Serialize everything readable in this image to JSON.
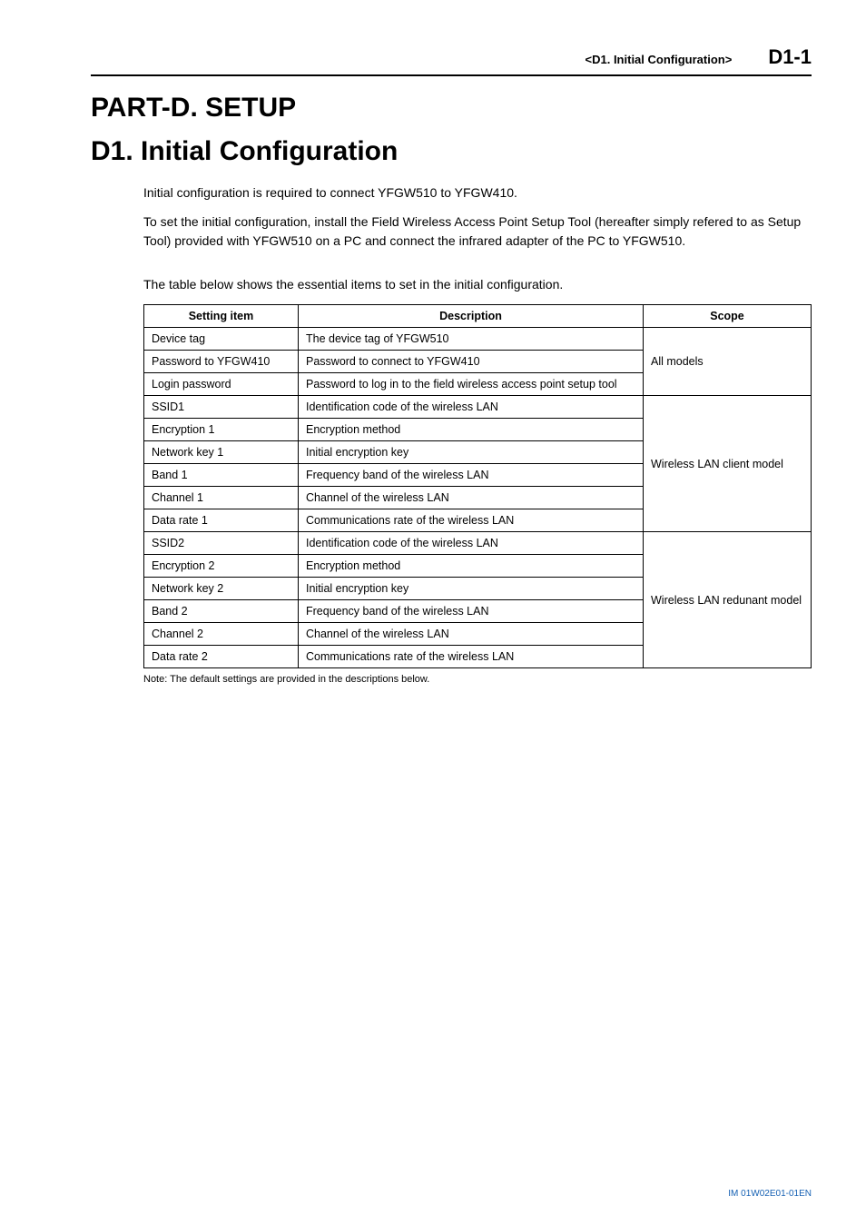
{
  "header": {
    "breadcrumb": "<D1.  Initial Configuration>",
    "page_id": "D1-1"
  },
  "titles": {
    "part": "PART-D.  SETUP",
    "chapter": "D1.    Initial Configuration"
  },
  "paragraphs": {
    "p1": "Initial configuration is required to connect YFGW510 to YFGW410.",
    "p2": "To set the initial configuration, install the Field Wireless Access Point Setup Tool (hereafter simply refered to as Setup Tool) provided with YFGW510 on a PC and connect the infrared adapter of the PC to YFGW510.",
    "p3": "The table below shows the essential items to set in the initial configuration."
  },
  "table": {
    "headers": {
      "item": "Setting item",
      "desc": "Description",
      "scope": "Scope"
    },
    "rows": {
      "r1": {
        "item": "Device tag",
        "desc": "The device tag of YFGW510"
      },
      "r2": {
        "item": "Password to YFGW410",
        "desc": "Password to connect to YFGW410"
      },
      "r3": {
        "item": "Login password",
        "desc": "Password to log in to the field wireless access point setup tool"
      },
      "r4": {
        "item": "SSID1",
        "desc": "Identification code of the wireless LAN"
      },
      "r5": {
        "item": "Encryption 1",
        "desc": "Encryption method"
      },
      "r6": {
        "item": "Network key 1",
        "desc": "Initial encryption key"
      },
      "r7": {
        "item": "Band 1",
        "desc": "Frequency band of the wireless LAN"
      },
      "r8": {
        "item": "Channel 1",
        "desc": "Channel of the wireless LAN"
      },
      "r9": {
        "item": "Data rate 1",
        "desc": "Communications rate of the wireless LAN"
      },
      "r10": {
        "item": "SSID2",
        "desc": "Identification code of the wireless LAN"
      },
      "r11": {
        "item": "Encryption 2",
        "desc": "Encryption method"
      },
      "r12": {
        "item": "Network key 2",
        "desc": "Initial encryption key"
      },
      "r13": {
        "item": "Band 2",
        "desc": "Frequency band of the wireless LAN"
      },
      "r14": {
        "item": "Channel 2",
        "desc": "Channel of the wireless LAN"
      },
      "r15": {
        "item": "Data rate 2",
        "desc": "Communications rate of the wireless LAN"
      }
    },
    "scopes": {
      "s1": "All models",
      "s2": "Wireless LAN client model",
      "s3": "Wireless LAN redunant model"
    }
  },
  "note": "Note: The default settings are provided in the descriptions below.",
  "footer": {
    "doc_id": "IM 01W02E01-01EN"
  }
}
